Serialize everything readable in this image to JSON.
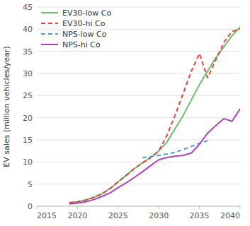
{
  "chart_data": {
    "type": "line",
    "y_label": "EV sales (million vehicles/year)",
    "xlim": [
      2015,
      2040
    ],
    "xticks": [
      2015,
      2020,
      2025,
      2030,
      2035,
      2040
    ],
    "ylim": [
      0,
      45
    ],
    "yticks": [
      0,
      5,
      10,
      15,
      20,
      25,
      30,
      35,
      40,
      45
    ],
    "grid": true,
    "legend": "upper left",
    "series": [
      {
        "name": "EV30-low Co",
        "color": "#6abf6a",
        "line_style": "solid",
        "x": [
          2019,
          2020,
          2021,
          2022,
          2023,
          2024,
          2025,
          2026,
          2027,
          2028,
          2029,
          2030,
          2031,
          2032,
          2033,
          2034,
          2035,
          2036,
          2037,
          2038,
          2039,
          2040
        ],
        "values": [
          0.8,
          1.0,
          1.4,
          2.0,
          2.8,
          4.0,
          5.5,
          7.0,
          8.5,
          9.8,
          11.0,
          12.5,
          14.5,
          17.5,
          20.5,
          24.0,
          27.5,
          30.5,
          33.5,
          36.0,
          38.5,
          40.5
        ]
      },
      {
        "name": "EV30-hi Co",
        "color": "#e8413a",
        "line_style": "dashed",
        "x": [
          2019,
          2020,
          2021,
          2022,
          2023,
          2024,
          2025,
          2026,
          2027,
          2028,
          2029,
          2030,
          2031,
          2032,
          2033,
          2034,
          2035,
          2036,
          2037,
          2038,
          2039,
          2040
        ],
        "values": [
          0.8,
          1.0,
          1.4,
          2.0,
          2.8,
          4.0,
          5.5,
          7.0,
          8.5,
          9.8,
          11.0,
          12.5,
          16.0,
          20.5,
          25.5,
          30.5,
          34.5,
          29.0,
          33.0,
          37.0,
          39.5,
          40.0
        ]
      },
      {
        "name": "NPS-low Co",
        "color": "#5599dd",
        "line_style": "dashed",
        "x": [
          2028,
          2029,
          2030,
          2031,
          2032,
          2033,
          2034,
          2035,
          2036
        ],
        "values": [
          11.0,
          11.2,
          11.5,
          11.8,
          12.2,
          12.8,
          13.5,
          14.2,
          14.8
        ]
      },
      {
        "name": "NPS-hi Co",
        "color": "#aa44bb",
        "line_style": "solid",
        "x": [
          2019,
          2020,
          2021,
          2022,
          2023,
          2024,
          2025,
          2026,
          2027,
          2028,
          2029,
          2030,
          2031,
          2032,
          2033,
          2034,
          2035,
          2036,
          2037,
          2038,
          2039,
          2040
        ],
        "values": [
          0.5,
          0.7,
          1.0,
          1.5,
          2.2,
          3.0,
          4.2,
          5.3,
          6.5,
          7.8,
          9.2,
          10.5,
          11.0,
          11.3,
          11.5,
          12.0,
          14.0,
          16.5,
          18.2,
          19.8,
          19.2,
          22.0
        ]
      }
    ]
  }
}
